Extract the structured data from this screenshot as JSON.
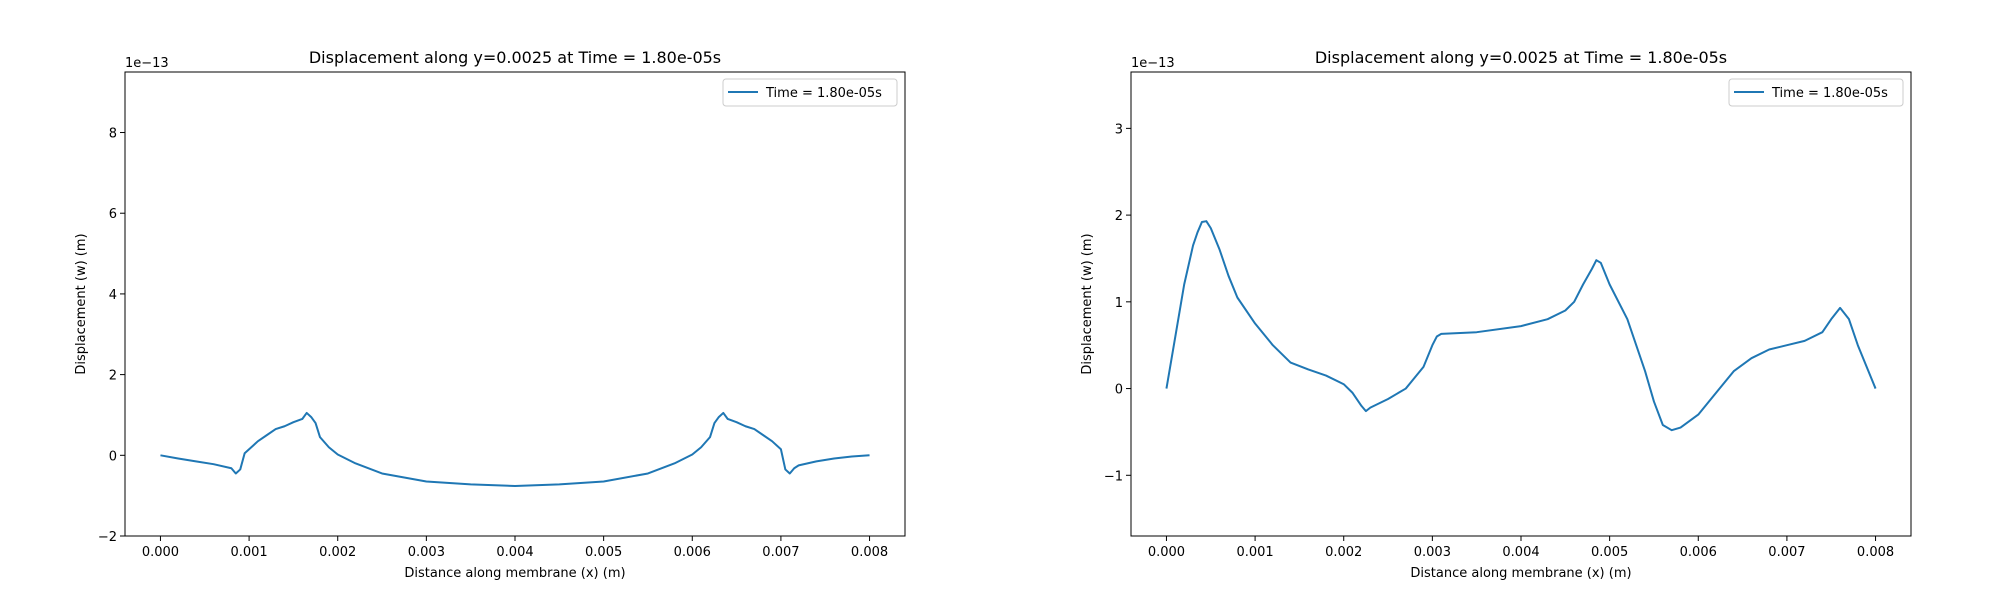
{
  "figure": {
    "background": "#ffffff"
  },
  "chart_data": [
    {
      "type": "line",
      "title": "Displacement along y=0.0025 at Time = 1.80e-05s",
      "xlabel": "Distance along membrane (x) (m)",
      "ylabel": "Displacement (w) (m)",
      "y_scale_label": "1e−13",
      "xlim": [
        -0.0004,
        0.0084
      ],
      "ylim": [
        -2.0,
        9.5
      ],
      "x_ticks": [
        0.0,
        0.001,
        0.002,
        0.003,
        0.004,
        0.005,
        0.006,
        0.007,
        0.008
      ],
      "x_tick_labels": [
        "0.000",
        "0.001",
        "0.002",
        "0.003",
        "0.004",
        "0.005",
        "0.006",
        "0.007",
        "0.008"
      ],
      "y_ticks": [
        -2,
        0,
        2,
        4,
        6,
        8
      ],
      "y_tick_labels": [
        "−2",
        "0",
        "2",
        "4",
        "6",
        "8"
      ],
      "grid": false,
      "legend_position": "top-right",
      "series": [
        {
          "name": "Time = 1.80e-05s",
          "color": "#1f77b4",
          "x": [
            0.0,
            0.0002,
            0.0004,
            0.0006,
            0.0008,
            0.00085,
            0.0009,
            0.00095,
            0.001,
            0.00105,
            0.0011,
            0.0012,
            0.0013,
            0.0014,
            0.0015,
            0.0016,
            0.00165,
            0.0017,
            0.00175,
            0.0018,
            0.0019,
            0.002,
            0.0022,
            0.0025,
            0.003,
            0.0035,
            0.004,
            0.0045,
            0.005,
            0.0055,
            0.0058,
            0.006,
            0.0061,
            0.0062,
            0.00625,
            0.0063,
            0.00635,
            0.0064,
            0.0065,
            0.0066,
            0.0067,
            0.0068,
            0.0069,
            0.007,
            0.00705,
            0.0071,
            0.00715,
            0.0072,
            0.0074,
            0.0076,
            0.0078,
            0.008
          ],
          "y": [
            0.0,
            -0.08,
            -0.15,
            -0.22,
            -0.32,
            -0.45,
            -0.35,
            0.05,
            0.15,
            0.25,
            0.35,
            0.5,
            0.65,
            0.72,
            0.82,
            0.9,
            1.05,
            0.95,
            0.8,
            0.45,
            0.2,
            0.02,
            -0.2,
            -0.45,
            -0.65,
            -0.72,
            -0.76,
            -0.72,
            -0.65,
            -0.45,
            -0.2,
            0.02,
            0.2,
            0.45,
            0.8,
            0.95,
            1.05,
            0.9,
            0.82,
            0.72,
            0.65,
            0.5,
            0.35,
            0.15,
            -0.35,
            -0.45,
            -0.32,
            -0.25,
            -0.15,
            -0.08,
            -0.03,
            0.0
          ]
        }
      ]
    },
    {
      "type": "line",
      "title": "Displacement along y=0.0025 at Time = 1.80e-05s",
      "xlabel": "Distance along membrane (x) (m)",
      "ylabel": "Displacement (w) (m)",
      "y_scale_label": "1e−13",
      "xlim": [
        -0.0004,
        0.0084
      ],
      "ylim": [
        -1.7,
        3.65
      ],
      "x_ticks": [
        0.0,
        0.001,
        0.002,
        0.003,
        0.004,
        0.005,
        0.006,
        0.007,
        0.008
      ],
      "x_tick_labels": [
        "0.000",
        "0.001",
        "0.002",
        "0.003",
        "0.004",
        "0.005",
        "0.006",
        "0.007",
        "0.008"
      ],
      "y_ticks": [
        -1,
        0,
        1,
        2,
        3
      ],
      "y_tick_labels": [
        "−1",
        "0",
        "1",
        "2",
        "3"
      ],
      "grid": false,
      "legend_position": "top-right",
      "series": [
        {
          "name": "Time = 1.80e-05s",
          "color": "#1f77b4",
          "x": [
            0.0,
            0.0001,
            0.0002,
            0.0003,
            0.00035,
            0.0004,
            0.00045,
            0.0005,
            0.0006,
            0.0007,
            0.0008,
            0.001,
            0.0012,
            0.0014,
            0.0016,
            0.0018,
            0.002,
            0.0021,
            0.0022,
            0.00225,
            0.0023,
            0.0025,
            0.0027,
            0.0029,
            0.003,
            0.00305,
            0.0031,
            0.0035,
            0.004,
            0.0043,
            0.0045,
            0.0046,
            0.0047,
            0.0048,
            0.00485,
            0.0049,
            0.005,
            0.0052,
            0.0054,
            0.0055,
            0.0056,
            0.0057,
            0.0058,
            0.006,
            0.0062,
            0.0064,
            0.0066,
            0.0068,
            0.007,
            0.0072,
            0.0074,
            0.0075,
            0.0076,
            0.0077,
            0.0078,
            0.008
          ],
          "y": [
            0.0,
            0.6,
            1.2,
            1.65,
            1.8,
            1.92,
            1.93,
            1.85,
            1.6,
            1.3,
            1.05,
            0.75,
            0.5,
            0.3,
            0.22,
            0.15,
            0.05,
            -0.05,
            -0.2,
            -0.26,
            -0.22,
            -0.12,
            0.0,
            0.25,
            0.5,
            0.6,
            0.63,
            0.65,
            0.72,
            0.8,
            0.9,
            1.0,
            1.2,
            1.38,
            1.48,
            1.45,
            1.2,
            0.8,
            0.2,
            -0.15,
            -0.42,
            -0.48,
            -0.45,
            -0.3,
            -0.05,
            0.2,
            0.35,
            0.45,
            0.5,
            0.55,
            0.65,
            0.8,
            0.93,
            0.8,
            0.5,
            0.0
          ]
        }
      ]
    }
  ]
}
